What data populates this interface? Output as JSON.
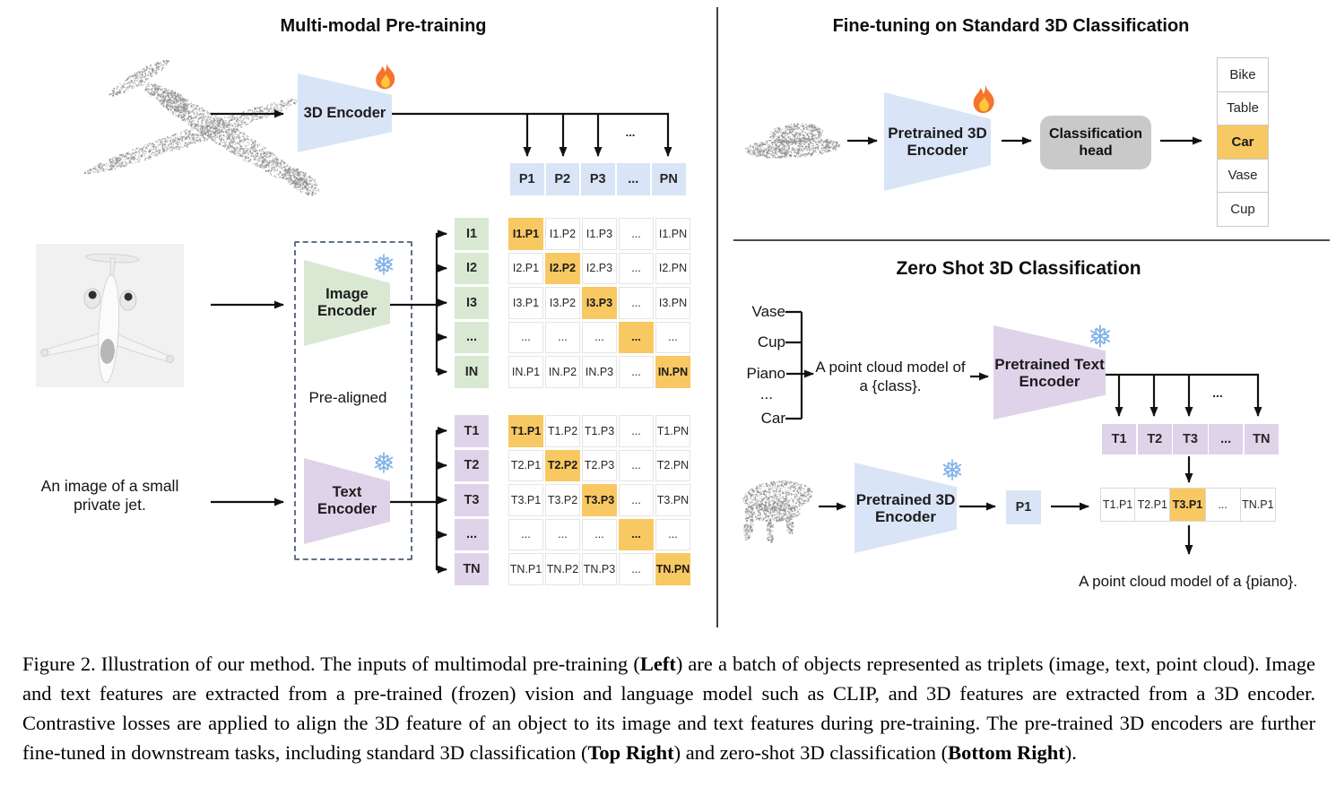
{
  "left_panel": {
    "title": "Multi-modal Pre-training",
    "encoder_3d_label": "3D Encoder",
    "image_encoder_line1": "Image",
    "image_encoder_line2": "Encoder",
    "text_encoder_line1": "Text",
    "text_encoder_line2": "Encoder",
    "pre_aligned_label": "Pre-aligned",
    "image_caption_line1": "An image of a small",
    "image_caption_line2": "private jet.",
    "dots_above_p": "...",
    "p_row": [
      "P1",
      "P2",
      "P3",
      "...",
      "PN"
    ],
    "i_labels": [
      "I1",
      "I2",
      "I3",
      "...",
      "IN"
    ],
    "i_matrix": [
      [
        "I1.P1",
        "I1.P2",
        "I1.P3",
        "...",
        "I1.PN"
      ],
      [
        "I2.P1",
        "I2.P2",
        "I2.P3",
        "...",
        "I2.PN"
      ],
      [
        "I3.P1",
        "I3.P2",
        "I3.P3",
        "...",
        "I3.PN"
      ],
      [
        "...",
        "...",
        "...",
        "...",
        "..."
      ],
      [
        "IN.P1",
        "IN.P2",
        "IN.P3",
        "...",
        "IN.PN"
      ]
    ],
    "t_labels": [
      "T1",
      "T2",
      "T3",
      "...",
      "TN"
    ],
    "t_matrix": [
      [
        "T1.P1",
        "T1.P2",
        "T1.P3",
        "...",
        "T1.PN"
      ],
      [
        "T2.P1",
        "T2.P2",
        "T2.P3",
        "...",
        "T2.PN"
      ],
      [
        "T3.P1",
        "T3.P2",
        "T3.P3",
        "...",
        "T3.PN"
      ],
      [
        "...",
        "...",
        "...",
        "...",
        "..."
      ],
      [
        "TN.P1",
        "TN.P2",
        "TN.P3",
        "...",
        "TN.PN"
      ]
    ]
  },
  "top_right_panel": {
    "title": "Fine-tuning on Standard 3D Classification",
    "encoder_line1": "Pretrained 3D",
    "encoder_line2": "Encoder",
    "head_line1": "Classification",
    "head_line2": "head",
    "classes": [
      "Bike",
      "Table",
      "Car",
      "Vase",
      "Cup"
    ],
    "highlighted_class": "Car"
  },
  "bottom_right_panel": {
    "title": "Zero Shot 3D Classification",
    "class_prompts": [
      "Vase",
      "Cup",
      "Piano",
      "...",
      "Car"
    ],
    "prompt_line1": "A point cloud model of",
    "prompt_line2": "a {class}.",
    "text_encoder_line1": "Pretrained Text",
    "text_encoder_line2": "Encoder",
    "encoder_3d_line1": "Pretrained 3D",
    "encoder_3d_line2": "Encoder",
    "dots_above_t": "...",
    "t_row": [
      "T1",
      "T2",
      "T3",
      "...",
      "TN"
    ],
    "p1_label": "P1",
    "tp_row": [
      "T1.P1",
      "T2.P1",
      "T3.P1",
      "...",
      "TN.P1"
    ],
    "highlighted_tp_index": 2,
    "result_text": "A point cloud model of a {piano}."
  },
  "icons": {
    "trainable": "flame-icon",
    "frozen": "snowflake-icon"
  },
  "colors": {
    "encoder_blue": "#dae4f7",
    "encoder_green": "#d9e8d3",
    "encoder_purple": "#ded3e9",
    "highlight_amber": "#f8c862",
    "head_gray": "#c9c9c9",
    "pointcloud_gray": "#8d8d8d"
  },
  "caption": {
    "segments": [
      {
        "t": "Figure 2. Illustration of our method. The inputs of multimodal pre-training (",
        "b": false
      },
      {
        "t": "Left",
        "b": true
      },
      {
        "t": ") are a batch of objects represented as triplets (image, text, point cloud).  Image and text features are extracted from a pre-trained (frozen) vision and language model such as CLIP, and 3D features are extracted from a 3D encoder.  Contrastive losses are applied to align the 3D feature of an object to its image and text features during pre-training.  The pre-trained 3D encoders are further fine-tuned in downstream tasks, including standard 3D classification (",
        "b": false
      },
      {
        "t": "Top Right",
        "b": true
      },
      {
        "t": ") and zero-shot 3D classification (",
        "b": false
      },
      {
        "t": "Bottom Right",
        "b": true
      },
      {
        "t": ").",
        "b": false
      }
    ]
  }
}
